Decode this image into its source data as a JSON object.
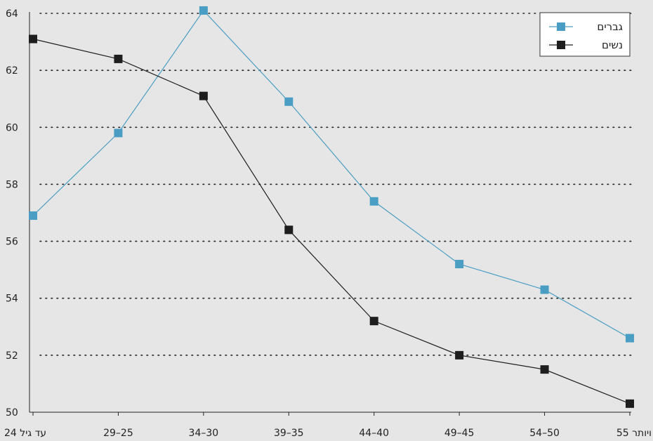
{
  "chart_data": {
    "type": "line",
    "categories": [
      "עד גיל 24",
      "29–25",
      "34–30",
      "39–35",
      "44–40",
      "49–45",
      "54–50",
      "55 ויותר"
    ],
    "series": [
      {
        "name": "גברים",
        "color": "#4a9ec4",
        "values": [
          56.9,
          59.8,
          64.1,
          60.9,
          57.4,
          55.2,
          54.3,
          52.6
        ]
      },
      {
        "name": "נשים",
        "color": "#1e1e1e",
        "values": [
          63.1,
          62.4,
          61.1,
          56.4,
          53.2,
          52.0,
          51.5,
          50.3
        ]
      }
    ],
    "ylim": [
      50,
      64
    ],
    "yticks": [
      50,
      52,
      54,
      56,
      58,
      60,
      62,
      64
    ],
    "grid": "horizontal-dotted",
    "legend_position": "top-right",
    "title": "",
    "xlabel": "",
    "ylabel": ""
  }
}
